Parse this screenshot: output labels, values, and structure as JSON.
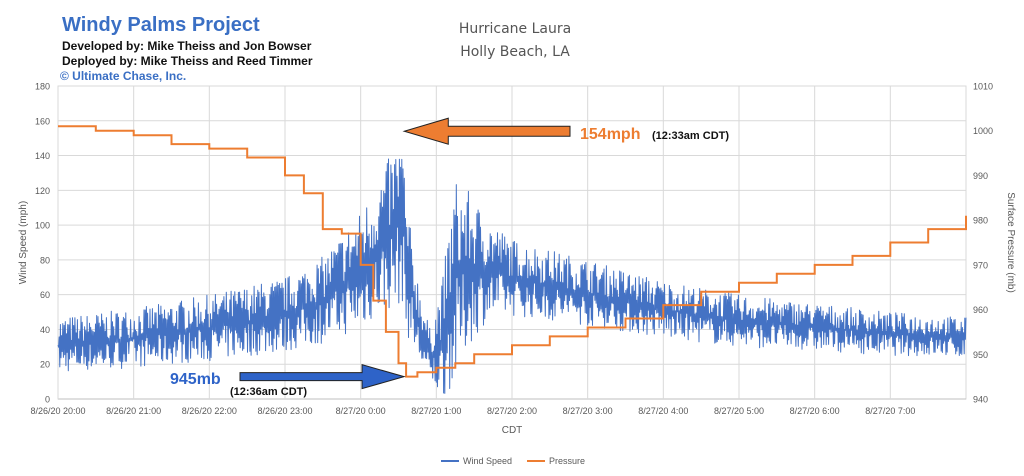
{
  "header": {
    "project_title": "Windy Palms Project",
    "developed_by": "Developed by: Mike Theiss and Jon Bowser",
    "deployed_by": "Deployed by: Mike Theiss and Reed Timmer",
    "copyright": "© Ultimate Chase, Inc."
  },
  "chart_data": {
    "type": "line",
    "title": "Hurricane Laura",
    "subtitle": "Holly Beach, LA",
    "xlabel": "CDT",
    "ylabel": "Wind Speed (mph)",
    "y2label": "Surface Pressure (mb)",
    "x_ticks": [
      "8/26/20 20:00",
      "8/26/20 21:00",
      "8/26/20 22:00",
      "8/26/20 23:00",
      "8/27/20 0:00",
      "8/27/20 1:00",
      "8/27/20 2:00",
      "8/27/20 3:00",
      "8/27/20 4:00",
      "8/27/20 5:00",
      "8/27/20 6:00",
      "8/27/20 7:00"
    ],
    "xlim": [
      "8/26/20 20:00",
      "8/27/20 8:00"
    ],
    "ylim": [
      0,
      180
    ],
    "y_ticks": [
      0,
      20,
      40,
      60,
      80,
      100,
      120,
      140,
      160,
      180
    ],
    "y2lim": [
      940,
      1010
    ],
    "y2_ticks": [
      940,
      950,
      960,
      970,
      980,
      990,
      1000,
      1010
    ],
    "grid": true,
    "legend": "bottom",
    "series": [
      {
        "name": "Wind Speed",
        "axis": "left",
        "color": "#4472c4",
        "envelope": {
          "time": [
            "8/26/20 20:00",
            "8/26/20 21:00",
            "8/26/20 22:00",
            "8/26/20 23:00",
            "8/26/20 23:30",
            "8/27/20 0:00",
            "8/27/20 0:15",
            "8/27/20 0:33",
            "8/27/20 0:36",
            "8/27/20 0:45",
            "8/27/20 0:55",
            "8/27/20 1:05",
            "8/27/20 1:15",
            "8/27/20 1:25",
            "8/27/20 1:40",
            "8/27/20 2:00",
            "8/27/20 3:00",
            "8/27/20 4:00",
            "8/27/20 5:00",
            "8/27/20 6:00",
            "8/27/20 7:00",
            "8/27/20 8:00"
          ],
          "low": [
            15,
            18,
            22,
            27,
            32,
            40,
            48,
            55,
            38,
            22,
            8,
            0,
            10,
            30,
            45,
            48,
            42,
            35,
            30,
            28,
            25,
            24
          ],
          "high": [
            47,
            52,
            60,
            70,
            82,
            108,
            128,
            154,
            115,
            72,
            40,
            70,
            128,
            120,
            105,
            92,
            80,
            68,
            60,
            55,
            50,
            47
          ]
        }
      },
      {
        "name": "Pressure",
        "axis": "right",
        "color": "#ed7d31",
        "time": [
          "8/26/20 20:00",
          "8/26/20 20:30",
          "8/26/20 21:00",
          "8/26/20 21:30",
          "8/26/20 22:00",
          "8/26/20 22:30",
          "8/26/20 23:00",
          "8/26/20 23:15",
          "8/26/20 23:30",
          "8/26/20 23:45",
          "8/27/20 0:00",
          "8/27/20 0:10",
          "8/27/20 0:20",
          "8/27/20 0:30",
          "8/27/20 0:36",
          "8/27/20 0:45",
          "8/27/20 1:00",
          "8/27/20 1:15",
          "8/27/20 1:30",
          "8/27/20 2:00",
          "8/27/20 2:30",
          "8/27/20 3:00",
          "8/27/20 3:30",
          "8/27/20 4:00",
          "8/27/20 4:30",
          "8/27/20 5:00",
          "8/27/20 5:30",
          "8/27/20 6:00",
          "8/27/20 6:30",
          "8/27/20 7:00",
          "8/27/20 7:30",
          "8/27/20 8:00"
        ],
        "values": [
          1001,
          1000,
          999,
          997,
          996,
          994,
          990,
          986,
          978,
          977,
          970,
          962,
          955,
          948,
          945,
          946,
          947,
          948,
          950,
          952,
          954,
          956,
          958,
          961,
          964,
          966,
          968,
          970,
          972,
          975,
          978,
          981
        ]
      }
    ],
    "annotations": [
      {
        "label": "154mph",
        "detail": "(12:33am CDT)",
        "color": "#ed7d31"
      },
      {
        "label": "945mb",
        "detail": "(12:36am CDT)",
        "color": "#2e63c8"
      }
    ]
  }
}
